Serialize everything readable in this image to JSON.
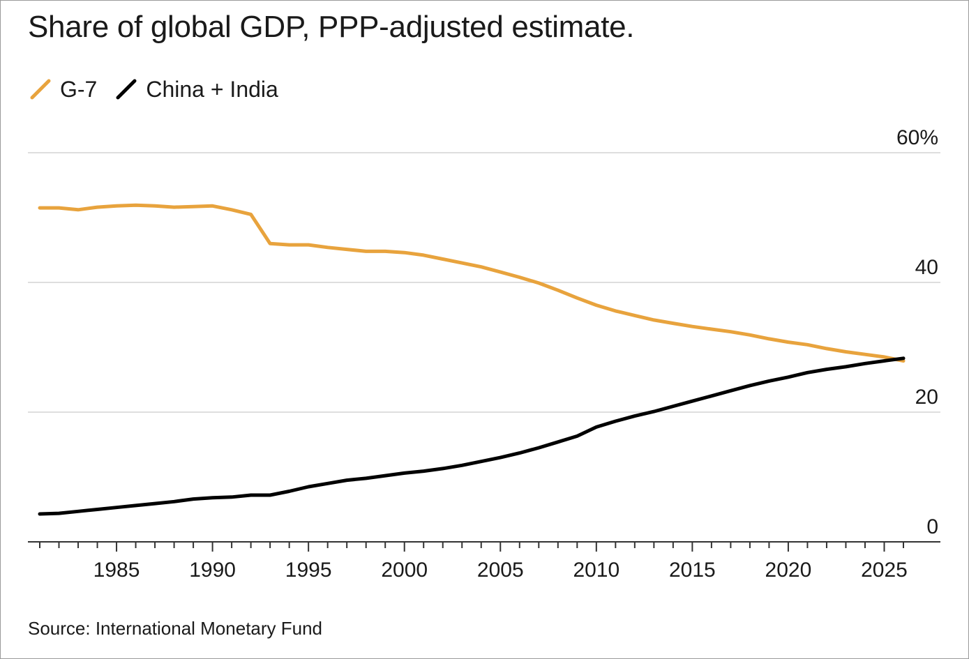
{
  "title": "Share of global GDP, PPP-adjusted estimate.",
  "source": "Source: International Monetary Fund",
  "legend": [
    {
      "label": "G-7",
      "color": "#e8a33d"
    },
    {
      "label": "China + India",
      "color": "#000000"
    }
  ],
  "chart_data": {
    "type": "line",
    "title": "Share of global GDP, PPP-adjusted estimate.",
    "xlabel": "",
    "ylabel": "",
    "xlim": [
      1981,
      2026
    ],
    "ylim": [
      0,
      60
    ],
    "x_ticks": [
      1985,
      1990,
      1995,
      2000,
      2005,
      2010,
      2015,
      2020,
      2025
    ],
    "y_ticks": [
      {
        "value": 0,
        "label": "0"
      },
      {
        "value": 20,
        "label": "20"
      },
      {
        "value": 40,
        "label": "40"
      },
      {
        "value": 60,
        "label": "60%"
      }
    ],
    "grid": true,
    "legend_position": "top-left",
    "x": [
      1981,
      1982,
      1983,
      1984,
      1985,
      1986,
      1987,
      1988,
      1989,
      1990,
      1991,
      1992,
      1993,
      1994,
      1995,
      1996,
      1997,
      1998,
      1999,
      2000,
      2001,
      2002,
      2003,
      2004,
      2005,
      2006,
      2007,
      2008,
      2009,
      2010,
      2011,
      2012,
      2013,
      2014,
      2015,
      2016,
      2017,
      2018,
      2019,
      2020,
      2021,
      2022,
      2023,
      2024,
      2025,
      2026
    ],
    "series": [
      {
        "name": "G-7",
        "color": "#e8a33d",
        "values": [
          51.5,
          51.5,
          51.2,
          51.6,
          51.8,
          51.9,
          51.8,
          51.6,
          51.7,
          51.8,
          51.2,
          50.5,
          46.0,
          45.8,
          45.8,
          45.4,
          45.1,
          44.8,
          44.8,
          44.6,
          44.2,
          43.6,
          43.0,
          42.4,
          41.6,
          40.8,
          39.9,
          38.8,
          37.6,
          36.5,
          35.6,
          34.9,
          34.2,
          33.7,
          33.2,
          32.8,
          32.4,
          31.9,
          31.3,
          30.8,
          30.4,
          29.8,
          29.3,
          28.9,
          28.5,
          27.9
        ],
        "label": "G-7"
      },
      {
        "name": "China + India",
        "color": "#000000",
        "values": [
          4.3,
          4.4,
          4.7,
          5.0,
          5.3,
          5.6,
          5.9,
          6.2,
          6.6,
          6.8,
          6.9,
          7.2,
          7.2,
          7.8,
          8.5,
          9.0,
          9.5,
          9.8,
          10.2,
          10.6,
          10.9,
          11.3,
          11.8,
          12.4,
          13.0,
          13.7,
          14.5,
          15.4,
          16.3,
          17.7,
          18.6,
          19.4,
          20.1,
          20.9,
          21.7,
          22.5,
          23.3,
          24.1,
          24.8,
          25.4,
          26.1,
          26.6,
          27.0,
          27.5,
          27.9,
          28.3
        ],
        "label": "China + India"
      }
    ]
  }
}
